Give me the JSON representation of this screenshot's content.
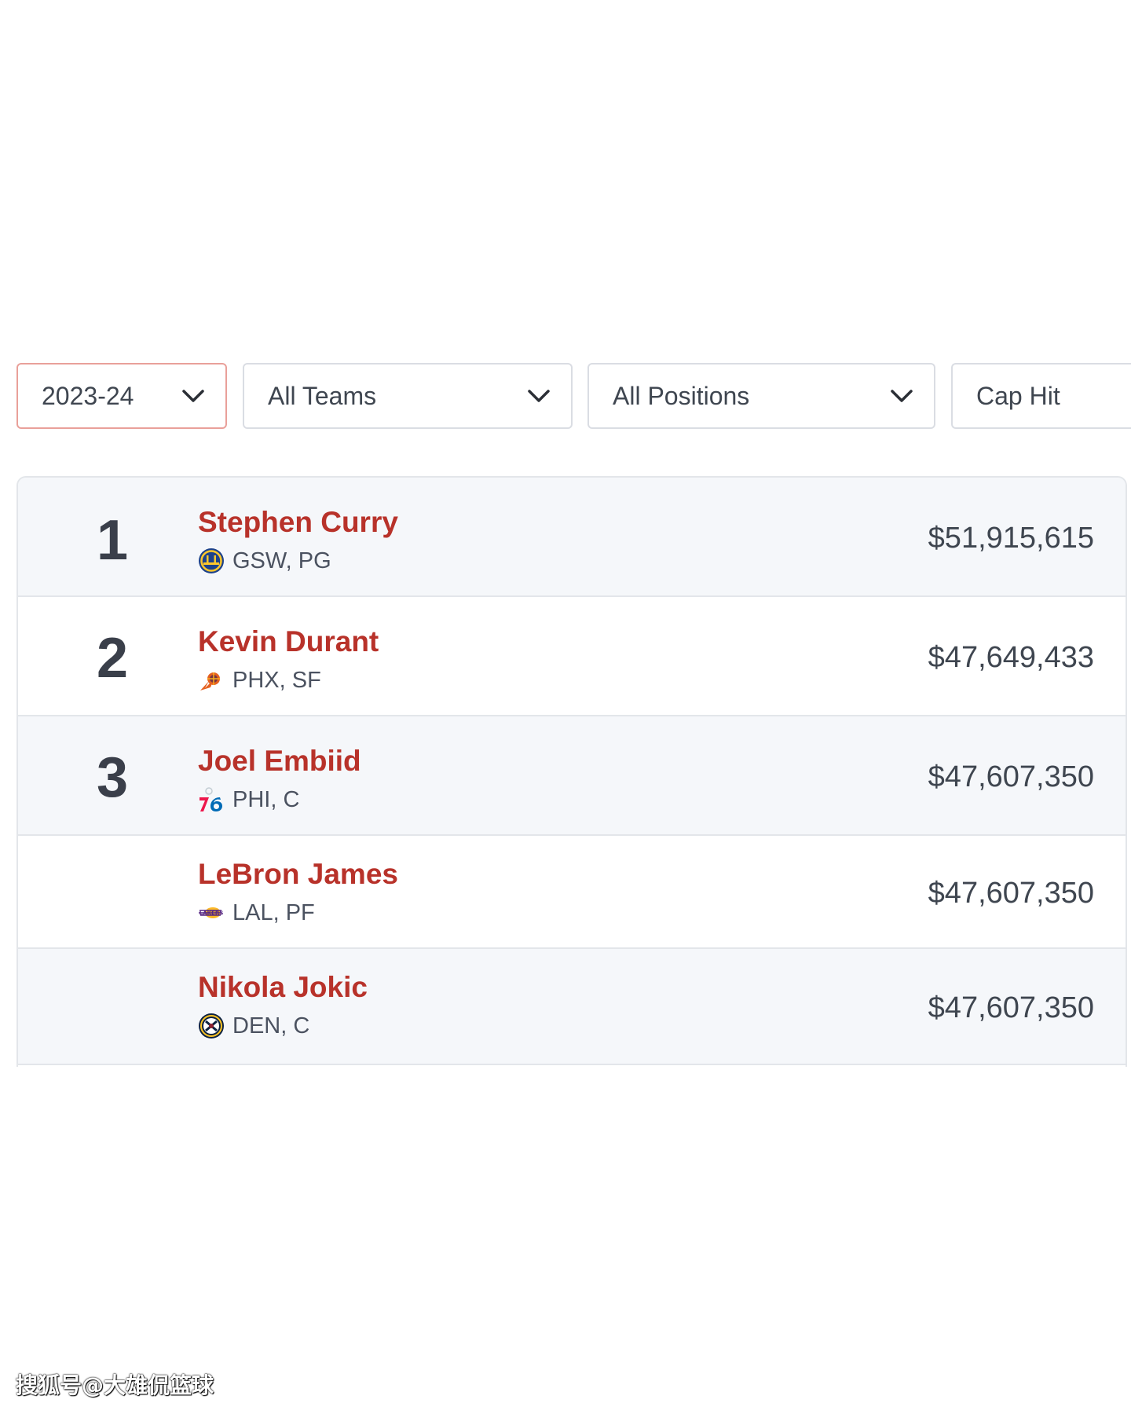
{
  "filters": {
    "season": "2023-24",
    "team": "All Teams",
    "position": "All Positions",
    "sort": "Cap Hit"
  },
  "colors": {
    "name_red": "#b8322a",
    "row_shade": "#f5f7fa",
    "active_border": "#e9a09a"
  },
  "players": [
    {
      "rank": "1",
      "name": "Stephen Curry",
      "team_pos": "GSW, PG",
      "logo": "warriors-logo-icon",
      "cap_hit": "$51,915,615"
    },
    {
      "rank": "2",
      "name": "Kevin Durant",
      "team_pos": "PHX, SF",
      "logo": "suns-logo-icon",
      "cap_hit": "$47,649,433"
    },
    {
      "rank": "3",
      "name": "Joel Embiid",
      "team_pos": "PHI, C",
      "logo": "76ers-logo-icon",
      "cap_hit": "$47,607,350"
    },
    {
      "rank": "",
      "name": "LeBron James",
      "team_pos": "LAL, PF",
      "logo": "lakers-logo-icon",
      "cap_hit": "$47,607,350"
    },
    {
      "rank": "",
      "name": "Nikola Jokic",
      "team_pos": "DEN, C",
      "logo": "nuggets-logo-icon",
      "cap_hit": "$47,607,350"
    }
  ],
  "watermark": "搜狐号@大雄侃篮球"
}
